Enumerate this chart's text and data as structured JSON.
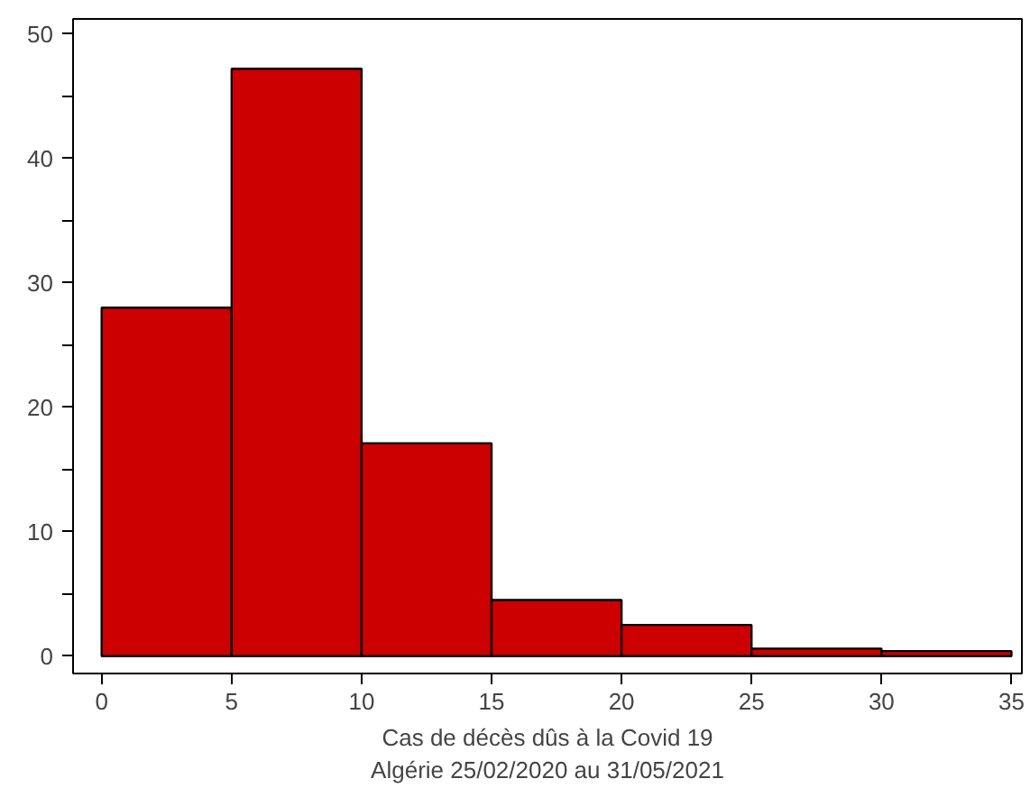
{
  "chart_data": {
    "type": "histogram",
    "xlabel": "Cas de décès dûs à la Covid 19\nAlgérie 25/02/2020 au 31/05/2021",
    "bins": [
      0,
      5,
      10,
      15,
      20,
      25,
      30,
      35
    ],
    "values": [
      28,
      47.2,
      17.1,
      4.5,
      2.5,
      0.6,
      0.4
    ],
    "color": "#cc0000",
    "xlim": [
      -1.1,
      35.4
    ],
    "ylim": [
      -1.4,
      51.2
    ],
    "xticks": [
      0,
      5,
      10,
      15,
      20,
      25,
      30,
      35
    ],
    "yticks": [
      0,
      {
        "value": 5,
        "label": null
      },
      10,
      {
        "value": 15,
        "label": null
      },
      20,
      {
        "value": 25,
        "label": null
      },
      30,
      {
        "value": 35,
        "label": null
      },
      40,
      {
        "value": 45,
        "label": null
      },
      50
    ],
    "grid": false
  }
}
